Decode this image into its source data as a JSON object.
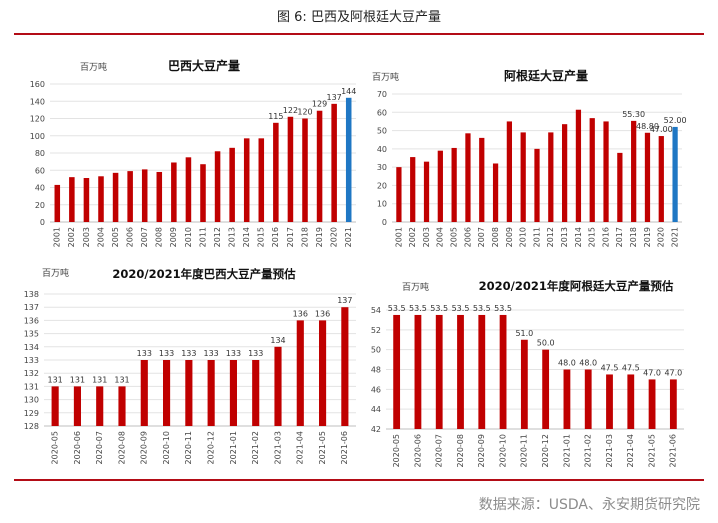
{
  "figure": {
    "title": "图 6:     巴西及阿根廷大豆产量",
    "source": "数据来源：USDA、永安期货研究院",
    "colors": {
      "bar": "#c00000",
      "highlight": "#1f77c4",
      "rule": "#b30c16",
      "grid": "#d9d9d9"
    }
  },
  "chart_data": [
    {
      "type": "bar",
      "title": "巴西大豆产量",
      "unit": "百万吨",
      "categories": [
        "2001",
        "2002",
        "2003",
        "2004",
        "2005",
        "2006",
        "2007",
        "2008",
        "2009",
        "2010",
        "2011",
        "2012",
        "2013",
        "2014",
        "2015",
        "2016",
        "2017",
        "2018",
        "2019",
        "2020",
        "2021"
      ],
      "values": [
        43,
        52,
        51,
        53,
        57,
        59,
        61,
        58,
        69,
        75,
        67,
        82,
        86,
        97,
        97,
        115,
        122,
        120,
        129,
        137,
        144
      ],
      "data_labels": {
        "15": "115",
        "16": "122",
        "17": "120",
        "18": "129",
        "19": "137",
        "20": "144"
      },
      "highlight_index": 20,
      "ylim": [
        0,
        160
      ],
      "yticks": [
        0,
        20,
        40,
        60,
        80,
        100,
        120,
        140,
        160
      ]
    },
    {
      "type": "bar",
      "title": "阿根廷大豆产量",
      "unit": "百万吨",
      "categories": [
        "2001",
        "2002",
        "2003",
        "2004",
        "2005",
        "2006",
        "2007",
        "2008",
        "2009",
        "2010",
        "2011",
        "2012",
        "2013",
        "2014",
        "2015",
        "2016",
        "2017",
        "2018",
        "2019",
        "2020",
        "2021"
      ],
      "values": [
        30,
        35.5,
        33,
        39,
        40.5,
        48.5,
        46,
        32,
        55,
        49,
        40,
        49,
        53.5,
        61.4,
        56.8,
        55,
        37.8,
        55.3,
        48.8,
        47,
        52
      ],
      "data_labels": {
        "17": "55.30",
        "18": "48.80",
        "19": "47.00",
        "20": "52.00"
      },
      "highlight_index": 20,
      "ylim": [
        0,
        70
      ],
      "yticks": [
        0,
        10,
        20,
        30,
        40,
        50,
        60,
        70
      ]
    },
    {
      "type": "bar",
      "title": "2020/2021年度巴西大豆产量预估",
      "unit": "百万吨",
      "categories": [
        "2020-05",
        "2020-06",
        "2020-07",
        "2020-08",
        "2020-09",
        "2020-10",
        "2020-11",
        "2020-12",
        "2021-01",
        "2021-02",
        "2021-03",
        "2021-04",
        "2021-05",
        "2021-06"
      ],
      "values": [
        131,
        131,
        131,
        131,
        133,
        133,
        133,
        133,
        133,
        133,
        134,
        136,
        136,
        137
      ],
      "labels": [
        "131",
        "131",
        "131",
        "131",
        "133",
        "133",
        "133",
        "133",
        "133",
        "133",
        "134",
        "136",
        "136",
        "137"
      ],
      "ylim": [
        128,
        138
      ],
      "yticks": [
        128,
        129,
        130,
        131,
        132,
        133,
        134,
        135,
        136,
        137,
        138
      ]
    },
    {
      "type": "bar",
      "title": "2020/2021年度阿根廷大豆产量预估",
      "unit": "百万吨",
      "categories": [
        "2020-05",
        "2020-06",
        "2020-07",
        "2020-08",
        "2020-09",
        "2020-10",
        "2020-11",
        "2020-12",
        "2021-01",
        "2021-02",
        "2021-03",
        "2021-04",
        "2021-05",
        "2021-06"
      ],
      "values": [
        53.5,
        53.5,
        53.5,
        53.5,
        53.5,
        53.5,
        51,
        50,
        48,
        48,
        47.5,
        47.5,
        47,
        47
      ],
      "labels": [
        "53.5",
        "53.5",
        "53.5",
        "53.5",
        "53.5",
        "53.5",
        "51.0",
        "50.0",
        "48.0",
        "48.0",
        "47.5",
        "47.5",
        "47.0",
        "47.0"
      ],
      "ylim": [
        42,
        54
      ],
      "yticks": [
        42,
        44,
        46,
        48,
        50,
        52,
        54
      ]
    }
  ]
}
